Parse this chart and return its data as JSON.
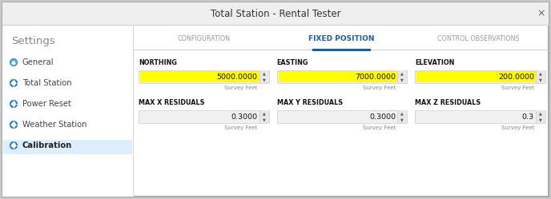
{
  "title": "Total Station - Rental Tester",
  "bg_outer": "#c8c8c8",
  "dialog_bg": "#ffffff",
  "sidebar_bg": "#ffffff",
  "sidebar_selected_bg": "#ddeeff",
  "title_bar_bg": "#efefef",
  "tab_active": "FIXED POSITION",
  "tabs": [
    "CONFIGURATION",
    "FIXED POSITION",
    "CONTROL OBSERVATIONS"
  ],
  "sidebar_items": [
    "General",
    "Total Station",
    "Power Reset",
    "Weather Station",
    "Calibration"
  ],
  "sidebar_selected": "Calibration",
  "settings_label": "Settings",
  "fields": [
    {
      "label": "NORTHING",
      "value": "5000.0000",
      "highlight": true,
      "unit": "Survey Feet",
      "row": 0,
      "col": 0
    },
    {
      "label": "EASTING",
      "value": "7000.0000",
      "highlight": true,
      "unit": "Survey Feet",
      "row": 0,
      "col": 1
    },
    {
      "label": "ELEVATION",
      "value": "200.0000",
      "highlight": true,
      "unit": "Survey Feet",
      "row": 0,
      "col": 2
    },
    {
      "label": "MAX X RESIDUALS",
      "value": "0.3000",
      "highlight": false,
      "unit": "Survey Feet",
      "row": 1,
      "col": 0
    },
    {
      "label": "MAX Y RESIDUALS",
      "value": "0.3000",
      "highlight": false,
      "unit": "Survey Feet",
      "row": 1,
      "col": 1
    },
    {
      "label": "MAX Z RESIDUALS",
      "value": "0.3",
      "highlight": false,
      "unit": "Survey Feet",
      "row": 1,
      "col": 2
    }
  ],
  "highlight_color": "#ffff00",
  "input_bg": "#e8e8e8",
  "input_bg_light": "#f0f0f0",
  "active_tab_color": "#1c5ba0",
  "tab_inactive_color": "#999999",
  "sidebar_divider": "#dddddd",
  "icon_blue": "#1e7bc4",
  "icon_outline": "#2b8fd4",
  "label_fs": 5.8,
  "value_fs": 6.8,
  "unit_fs": 5.0,
  "sidebar_fs": 7.2,
  "settings_fs": 9.5,
  "title_fs": 8.5,
  "tab_active_fs": 6.5,
  "tab_inactive_fs": 5.8
}
